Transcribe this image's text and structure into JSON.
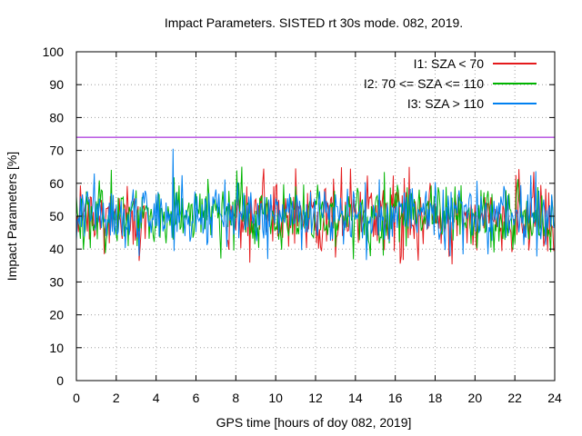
{
  "chart_data": {
    "type": "line",
    "title": "Impact Parameters. SISTED rt 30s mode. 082, 2019.",
    "xlabel": "GPS time [hours of doy 082, 2019]",
    "ylabel": "Impact Parameters [%]",
    "xlim": [
      0,
      24
    ],
    "ylim": [
      0,
      100
    ],
    "xticks": [
      0,
      2,
      4,
      6,
      8,
      10,
      12,
      14,
      16,
      18,
      20,
      22,
      24
    ],
    "yticks": [
      0,
      10,
      20,
      30,
      40,
      50,
      60,
      70,
      80,
      90,
      100
    ],
    "grid": true,
    "legend_position": "top-right",
    "threshold": {
      "value": 74,
      "color": "#9400d3"
    },
    "series": [
      {
        "name": "I1: SZA < 70",
        "color": "#e41a1c",
        "center": 50,
        "spread": 5.5,
        "min": 28.5,
        "max": 65,
        "segments": [
          [
            0,
            3.5
          ],
          [
            7.5,
            24
          ]
        ]
      },
      {
        "name": "I2: 70 <= SZA <= 110",
        "color": "#00b400",
        "center": 50,
        "spread": 5.0,
        "min": 31,
        "max": 66,
        "segments": [
          [
            0,
            24
          ]
        ]
      },
      {
        "name": "I3: SZA > 110",
        "color": "#0080f0",
        "center": 50,
        "spread": 4.5,
        "min": 29.5,
        "max": 73.5,
        "segments": [
          [
            0,
            24
          ]
        ]
      }
    ]
  }
}
